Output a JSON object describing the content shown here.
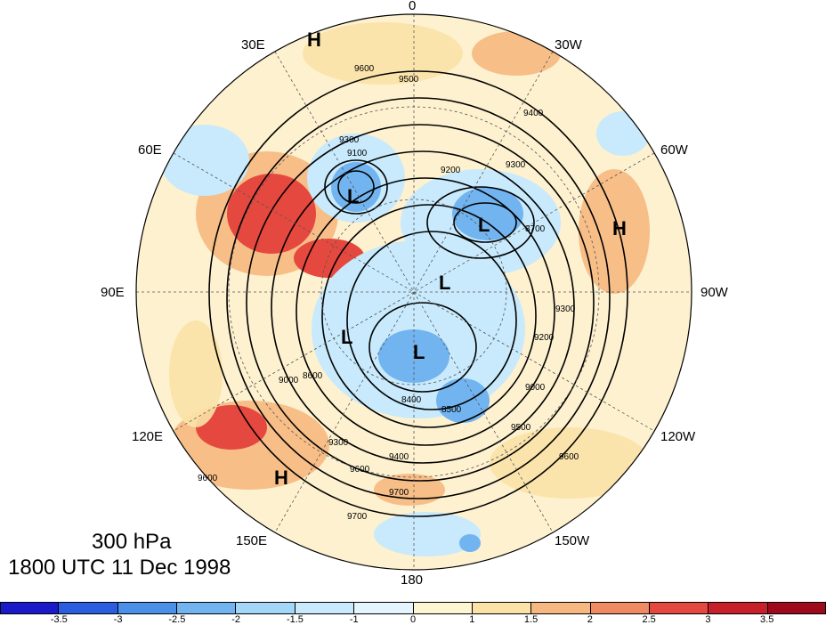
{
  "title": {
    "level": "300 hPa",
    "time": "1800 UTC 11 Dec 1998"
  },
  "longitude_labels": {
    "lon_0": "0",
    "lon_30w": "30W",
    "lon_60w": "60W",
    "lon_90w": "90W",
    "lon_120w": "120W",
    "lon_150w": "150W",
    "lon_180": "180",
    "lon_150e": "150E",
    "lon_120e": "120E",
    "lon_90e": "90E",
    "lon_60e": "60E",
    "lon_30e": "30E"
  },
  "pressure_centers": [
    "H",
    "L",
    "L",
    "L",
    "L",
    "L",
    "H",
    "H"
  ],
  "contour_labels": [
    "9600",
    "9500",
    "9300",
    "9400",
    "9200",
    "9300",
    "9100",
    "8700",
    "9000",
    "8600",
    "8400",
    "8500",
    "9300",
    "9400",
    "9600",
    "9700",
    "9700",
    "9600",
    "9500",
    "9000",
    "9200",
    "9300",
    "9600"
  ],
  "colorbar": {
    "colors": [
      "#1a1acb",
      "#2a5de0",
      "#4a90e8",
      "#72b4f0",
      "#a4d6f8",
      "#c8eafc",
      "#e4f5fd",
      "#fdf6d2",
      "#fbe2a6",
      "#f6b880",
      "#ef8a62",
      "#e5483e",
      "#c8202a",
      "#9e0a1c"
    ],
    "ticks": [
      "-3.5",
      "-3",
      "-2.5",
      "-2",
      "-1.5",
      "-1",
      "0",
      "1",
      "1.5",
      "2",
      "2.5",
      "3",
      "3.5"
    ]
  }
}
